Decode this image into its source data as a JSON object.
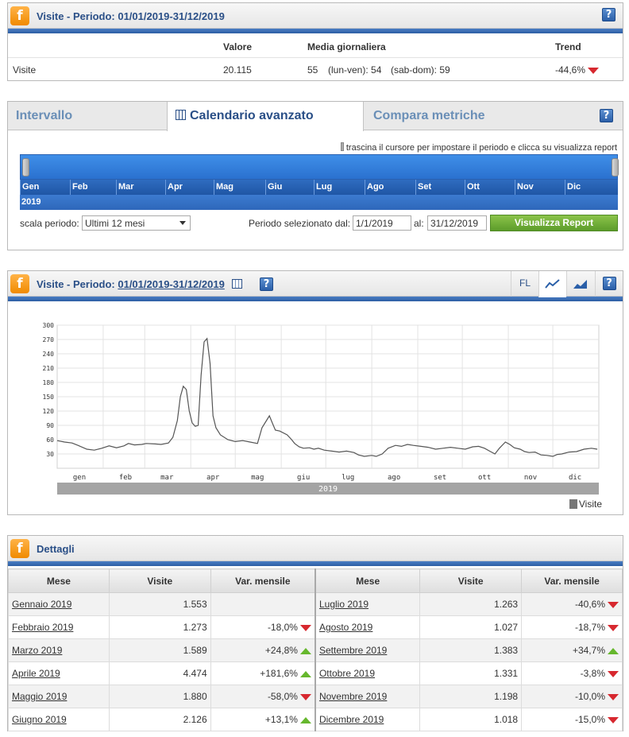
{
  "summary": {
    "title": "Visite - Periodo: 01/01/2019-31/12/2019",
    "help": "?",
    "headers": {
      "valore": "Valore",
      "media": "Media giornaliera",
      "trend": "Trend"
    },
    "row": {
      "label": "Visite",
      "valore": "20.115",
      "media": "55",
      "lunven": "(lun-ven): 54",
      "sabdom": "(sab-dom): 59",
      "trend": "-44,6%",
      "trend_dir": "down"
    }
  },
  "tabs": {
    "intervallo": "Intervallo",
    "calendario": "Calendario avanzato",
    "compara": "Compara metriche",
    "help": "?"
  },
  "timeline": {
    "hint": "trascina il cursore per impostare il periodo e clicca su visualizza report",
    "months": [
      "Gen",
      "Feb",
      "Mar",
      "Apr",
      "Mag",
      "Giu",
      "Lug",
      "Ago",
      "Set",
      "Ott",
      "Nov",
      "Dic"
    ],
    "year": "2019"
  },
  "controls": {
    "scala_label": "scala periodo:",
    "scala_value": "Ultimi 12 mesi",
    "periodo_label": "Periodo selezionato dal:",
    "from": "1/1/2019",
    "al_label": "al:",
    "to": "31/12/2019",
    "button": "Visualizza Report"
  },
  "chartpanel": {
    "title_prefix": "Visite - Periodo:",
    "title_period": "01/01/2019-31/12/2019",
    "fl": "FL",
    "help": "?",
    "legend": "Visite"
  },
  "chart_data": {
    "type": "line",
    "title": "",
    "xlabel": "",
    "ylabel": "",
    "ylim": [
      0,
      300
    ],
    "yticks": [
      30,
      60,
      90,
      120,
      150,
      180,
      210,
      240,
      270,
      300
    ],
    "xtick_labels": [
      "gen",
      "feb",
      "mar",
      "apr",
      "mag",
      "giu",
      "lug",
      "ago",
      "set",
      "ott",
      "nov",
      "dic"
    ],
    "year_label": "2019",
    "series": [
      {
        "name": "Visite",
        "color": "#555555",
        "points": [
          [
            0,
            58
          ],
          [
            5,
            55
          ],
          [
            10,
            53
          ],
          [
            14,
            48
          ],
          [
            20,
            40
          ],
          [
            25,
            38
          ],
          [
            30,
            42
          ],
          [
            35,
            47
          ],
          [
            40,
            43
          ],
          [
            45,
            47
          ],
          [
            48,
            52
          ],
          [
            52,
            49
          ],
          [
            57,
            50
          ],
          [
            60,
            52
          ],
          [
            66,
            51
          ],
          [
            70,
            50
          ],
          [
            75,
            53
          ],
          [
            78,
            65
          ],
          [
            81,
            100
          ],
          [
            83,
            150
          ],
          [
            85,
            172
          ],
          [
            87,
            165
          ],
          [
            89,
            120
          ],
          [
            91,
            95
          ],
          [
            93,
            88
          ],
          [
            95,
            90
          ],
          [
            97,
            195
          ],
          [
            99,
            265
          ],
          [
            101,
            272
          ],
          [
            103,
            220
          ],
          [
            105,
            110
          ],
          [
            107,
            85
          ],
          [
            110,
            70
          ],
          [
            115,
            60
          ],
          [
            120,
            56
          ],
          [
            125,
            58
          ],
          [
            130,
            55
          ],
          [
            135,
            52
          ],
          [
            138,
            85
          ],
          [
            141,
            100
          ],
          [
            143,
            110
          ],
          [
            145,
            95
          ],
          [
            147,
            80
          ],
          [
            150,
            78
          ],
          [
            155,
            70
          ],
          [
            158,
            60
          ],
          [
            160,
            52
          ],
          [
            163,
            45
          ],
          [
            166,
            42
          ],
          [
            170,
            43
          ],
          [
            173,
            40
          ],
          [
            176,
            42
          ],
          [
            180,
            38
          ],
          [
            185,
            36
          ],
          [
            190,
            34
          ],
          [
            195,
            36
          ],
          [
            200,
            33
          ],
          [
            203,
            28
          ],
          [
            207,
            25
          ],
          [
            212,
            27
          ],
          [
            215,
            25
          ],
          [
            219,
            30
          ],
          [
            223,
            42
          ],
          [
            228,
            48
          ],
          [
            232,
            46
          ],
          [
            236,
            50
          ],
          [
            240,
            48
          ],
          [
            245,
            46
          ],
          [
            250,
            44
          ],
          [
            255,
            40
          ],
          [
            260,
            42
          ],
          [
            265,
            44
          ],
          [
            270,
            42
          ],
          [
            275,
            40
          ],
          [
            280,
            45
          ],
          [
            284,
            46
          ],
          [
            288,
            42
          ],
          [
            292,
            35
          ],
          [
            295,
            30
          ],
          [
            298,
            42
          ],
          [
            302,
            55
          ],
          [
            305,
            50
          ],
          [
            308,
            43
          ],
          [
            312,
            40
          ],
          [
            315,
            35
          ],
          [
            318,
            33
          ],
          [
            322,
            34
          ],
          [
            326,
            28
          ],
          [
            330,
            27
          ],
          [
            334,
            25
          ],
          [
            337,
            29
          ],
          [
            340,
            30
          ],
          [
            345,
            34
          ],
          [
            350,
            35
          ],
          [
            355,
            40
          ],
          [
            360,
            42
          ],
          [
            364,
            40
          ]
        ]
      }
    ]
  },
  "details": {
    "title": "Dettagli",
    "headers": {
      "mese": "Mese",
      "visite": "Visite",
      "var": "Var. mensile"
    },
    "left": [
      {
        "mese": "Gennaio 2019",
        "visite": "1.553",
        "var": "",
        "dir": ""
      },
      {
        "mese": "Febbraio 2019",
        "visite": "1.273",
        "var": "-18,0%",
        "dir": "down"
      },
      {
        "mese": "Marzo 2019",
        "visite": "1.589",
        "var": "+24,8%",
        "dir": "up"
      },
      {
        "mese": "Aprile 2019",
        "visite": "4.474",
        "var": "+181,6%",
        "dir": "up"
      },
      {
        "mese": "Maggio 2019",
        "visite": "1.880",
        "var": "-58,0%",
        "dir": "down"
      },
      {
        "mese": "Giugno 2019",
        "visite": "2.126",
        "var": "+13,1%",
        "dir": "up"
      }
    ],
    "right": [
      {
        "mese": "Luglio 2019",
        "visite": "1.263",
        "var": "-40,6%",
        "dir": "down"
      },
      {
        "mese": "Agosto 2019",
        "visite": "1.027",
        "var": "-18,7%",
        "dir": "down"
      },
      {
        "mese": "Settembre 2019",
        "visite": "1.383",
        "var": "+34,7%",
        "dir": "up"
      },
      {
        "mese": "Ottobre 2019",
        "visite": "1.331",
        "var": "-3,8%",
        "dir": "down"
      },
      {
        "mese": "Novembre 2019",
        "visite": "1.198",
        "var": "-10,0%",
        "dir": "down"
      },
      {
        "mese": "Dicembre 2019",
        "visite": "1.018",
        "var": "-15,0%",
        "dir": "down"
      }
    ]
  }
}
